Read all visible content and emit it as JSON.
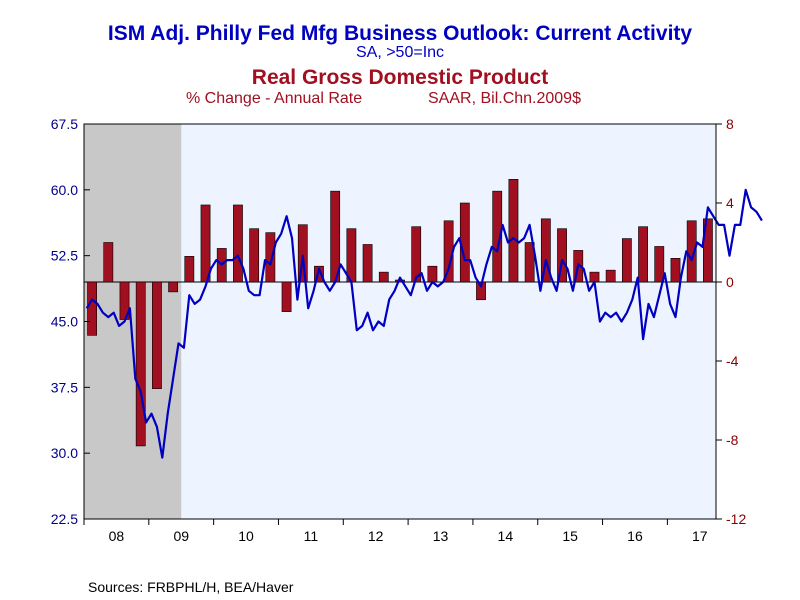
{
  "titles": {
    "line_title": "ISM Adj. Philly Fed Mfg Business Outlook: Current Activity",
    "line_subtitle": "SA, >50=Inc",
    "bar_title": "Real Gross Domestic Product",
    "bar_subtitle_left": "% Change - Annual Rate",
    "bar_subtitle_right": "SAAR, Bil.Chn.2009$"
  },
  "source": "Sources:  FRBPHL/H, BEA/Haver",
  "colors": {
    "line": "#0000c0",
    "bar": "#a01020",
    "plot_bg": "#eef4ff",
    "recession": "#c8c8c8",
    "left_axis_text": "#00008b",
    "right_axis_text": "#8b0000"
  },
  "chart_data": {
    "type": "line+bar",
    "x_tick_labels": [
      "08",
      "09",
      "10",
      "11",
      "12",
      "13",
      "14",
      "15",
      "16",
      "17"
    ],
    "left_axis": {
      "ticks": [
        "67.5",
        "60.0",
        "52.5",
        "45.0",
        "37.5",
        "30.0",
        "22.5"
      ],
      "range": [
        22.5,
        67.5
      ]
    },
    "right_axis": {
      "ticks": [
        "8",
        "4",
        "0",
        "-4",
        "-8",
        "-12"
      ],
      "range": [
        -12,
        8
      ]
    },
    "recession": {
      "start": "2008-01",
      "end": "2009-06"
    },
    "line_series": {
      "name": "ISM Adj. Philly Fed Mfg Business Outlook: Current Activity",
      "start": "2008-01",
      "frequency": "monthly",
      "values": [
        46.5,
        47.5,
        47.0,
        46.0,
        45.5,
        46.0,
        44.5,
        45.0,
        46.5,
        38.5,
        37.0,
        33.5,
        34.5,
        33.0,
        29.5,
        34.5,
        38.5,
        42.5,
        42.0,
        48.0,
        47.0,
        47.5,
        49.0,
        51.0,
        52.0,
        51.5,
        52.0,
        52.0,
        52.5,
        51.0,
        48.5,
        48.0,
        48.0,
        52.0,
        51.5,
        54.0,
        55.0,
        57.0,
        54.5,
        47.5,
        52.5,
        46.5,
        48.5,
        51.0,
        49.5,
        48.5,
        49.5,
        51.5,
        50.5,
        49.5,
        44.0,
        44.5,
        46.0,
        44.0,
        45.0,
        44.5,
        47.5,
        48.5,
        50.0,
        49.0,
        48.0,
        50.0,
        50.5,
        48.5,
        49.5,
        49.0,
        49.5,
        51.0,
        53.5,
        54.5,
        52.0,
        52.0,
        50.0,
        49.0,
        51.5,
        53.5,
        53.0,
        56.0,
        54.0,
        54.5,
        54.0,
        54.5,
        56.0,
        52.5,
        48.5,
        52.0,
        50.0,
        48.5,
        52.0,
        51.0,
        48.5,
        51.5,
        51.0,
        48.5,
        49.5,
        45.0,
        46.0,
        45.5,
        46.0,
        45.0,
        46.0,
        47.5,
        50.0,
        43.0,
        47.0,
        45.5,
        48.0,
        50.5,
        47.0,
        45.5,
        50.0,
        53.0,
        52.0,
        54.0,
        53.5,
        58.0,
        57.0,
        56.0,
        56.0,
        52.5,
        56.0,
        56.0,
        60.0,
        58.0,
        57.5,
        56.5
      ]
    },
    "bar_series": {
      "name": "Real Gross Domestic Product",
      "start": "2008-Q1",
      "frequency": "quarterly",
      "values": [
        -2.7,
        2.0,
        -1.9,
        -8.3,
        -5.4,
        -0.5,
        1.3,
        3.9,
        1.7,
        3.9,
        2.7,
        2.5,
        -1.5,
        2.9,
        0.8,
        4.6,
        2.7,
        1.9,
        0.5,
        0.1,
        2.8,
        0.8,
        3.1,
        4.0,
        -0.9,
        4.6,
        5.2,
        2.0,
        3.2,
        2.7,
        1.6,
        0.5,
        0.6,
        2.2,
        2.8,
        1.8,
        1.2,
        3.1,
        3.2
      ]
    }
  }
}
